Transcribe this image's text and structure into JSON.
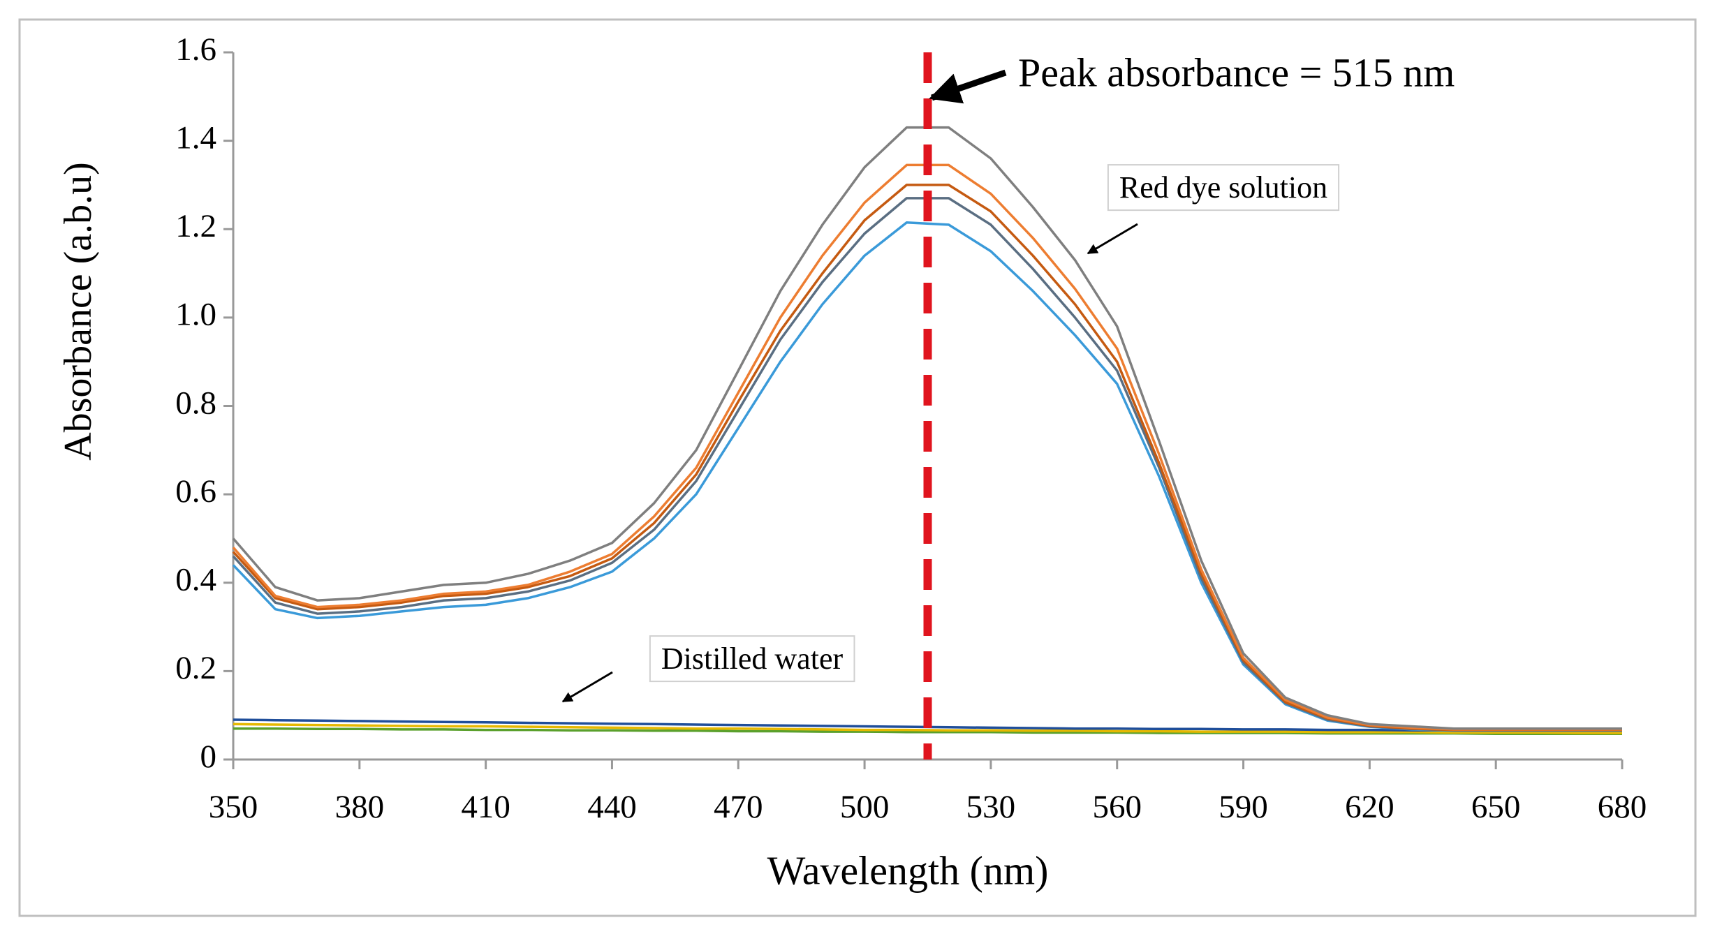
{
  "chart_data": {
    "type": "line",
    "y_label": "Absorbance  (a.b.u)",
    "x_label": "Wavelength (nm)",
    "annotations": [
      "Peak absorbance = 515 nm",
      "Red dye solution",
      "Distilled water"
    ],
    "reference_line": {
      "x": 515,
      "color": "#e0141e"
    },
    "xlim": [
      350,
      680
    ],
    "xticks": [
      350,
      380,
      410,
      440,
      470,
      500,
      530,
      560,
      590,
      620,
      650,
      680
    ],
    "ylim": [
      0,
      1.6
    ],
    "yticks": [
      0,
      0.2,
      0.4,
      0.6,
      0.8,
      {
        "value": 1,
        "label": "1.0"
      },
      1.2,
      1.4,
      1.6
    ],
    "x": [
      350,
      360,
      370,
      380,
      390,
      400,
      410,
      420,
      430,
      440,
      450,
      460,
      470,
      480,
      490,
      500,
      510,
      520,
      530,
      540,
      550,
      560,
      570,
      580,
      590,
      600,
      610,
      620,
      630,
      640,
      650,
      660,
      670,
      680
    ],
    "series": [
      {
        "color": "#7f7f7f",
        "values": [
          0.5,
          0.39,
          0.36,
          0.365,
          0.38,
          0.395,
          0.4,
          0.42,
          0.45,
          0.49,
          0.58,
          0.7,
          0.88,
          1.06,
          1.21,
          1.34,
          1.43,
          1.43,
          1.36,
          1.25,
          1.13,
          0.98,
          0.72,
          0.45,
          0.24,
          0.14,
          0.1,
          0.08,
          0.075,
          0.07,
          0.07,
          0.07,
          0.07,
          0.07
        ]
      },
      {
        "color": "#ed7d31",
        "values": [
          0.48,
          0.37,
          0.345,
          0.35,
          0.36,
          0.375,
          0.38,
          0.395,
          0.425,
          0.465,
          0.55,
          0.66,
          0.83,
          1.0,
          1.14,
          1.26,
          1.345,
          1.345,
          1.28,
          1.18,
          1.065,
          0.93,
          0.69,
          0.43,
          0.23,
          0.135,
          0.095,
          0.078,
          0.072,
          0.068,
          0.068,
          0.068,
          0.068,
          0.068
        ]
      },
      {
        "color": "#c55a11",
        "values": [
          0.47,
          0.365,
          0.34,
          0.345,
          0.355,
          0.37,
          0.375,
          0.39,
          0.415,
          0.455,
          0.535,
          0.645,
          0.81,
          0.97,
          1.1,
          1.22,
          1.3,
          1.3,
          1.24,
          1.14,
          1.03,
          0.9,
          0.67,
          0.42,
          0.225,
          0.13,
          0.093,
          0.076,
          0.07,
          0.067,
          0.067,
          0.067,
          0.067,
          0.067
        ]
      },
      {
        "color": "#5a6e82",
        "values": [
          0.46,
          0.355,
          0.33,
          0.335,
          0.345,
          0.36,
          0.365,
          0.38,
          0.405,
          0.445,
          0.52,
          0.63,
          0.79,
          0.95,
          1.08,
          1.19,
          1.27,
          1.27,
          1.21,
          1.11,
          1.0,
          0.88,
          0.66,
          0.41,
          0.22,
          0.128,
          0.09,
          0.075,
          0.069,
          0.066,
          0.066,
          0.066,
          0.066,
          0.066
        ]
      },
      {
        "color": "#3a9ad9",
        "values": [
          0.44,
          0.34,
          0.32,
          0.325,
          0.335,
          0.345,
          0.35,
          0.365,
          0.39,
          0.425,
          0.5,
          0.6,
          0.75,
          0.9,
          1.03,
          1.14,
          1.215,
          1.21,
          1.15,
          1.06,
          0.96,
          0.85,
          0.64,
          0.4,
          0.215,
          0.125,
          0.088,
          0.074,
          0.068,
          0.065,
          0.065,
          0.065,
          0.065,
          0.065
        ]
      },
      {
        "color": "#1f4e9a",
        "values": [
          0.09,
          0.089,
          0.088,
          0.087,
          0.086,
          0.085,
          0.084,
          0.083,
          0.082,
          0.081,
          0.08,
          0.079,
          0.078,
          0.077,
          0.076,
          0.075,
          0.074,
          0.073,
          0.072,
          0.071,
          0.07,
          0.07,
          0.069,
          0.069,
          0.068,
          0.068,
          0.067,
          0.067,
          0.066,
          0.066,
          0.066,
          0.065,
          0.065,
          0.065
        ]
      },
      {
        "color": "#e6b800",
        "values": [
          0.08,
          0.079,
          0.078,
          0.077,
          0.076,
          0.075,
          0.075,
          0.074,
          0.073,
          0.072,
          0.071,
          0.07,
          0.07,
          0.069,
          0.068,
          0.067,
          0.067,
          0.066,
          0.066,
          0.065,
          0.065,
          0.064,
          0.064,
          0.063,
          0.063,
          0.063,
          0.062,
          0.062,
          0.062,
          0.061,
          0.061,
          0.061,
          0.06,
          0.06
        ]
      },
      {
        "color": "#5aa02c",
        "values": [
          0.07,
          0.07,
          0.069,
          0.069,
          0.068,
          0.068,
          0.067,
          0.067,
          0.066,
          0.066,
          0.065,
          0.065,
          0.064,
          0.064,
          0.063,
          0.063,
          0.062,
          0.062,
          0.062,
          0.061,
          0.061,
          0.061,
          0.06,
          0.06,
          0.06,
          0.06,
          0.059,
          0.059,
          0.059,
          0.059,
          0.058,
          0.058,
          0.058,
          0.058
        ]
      }
    ]
  }
}
